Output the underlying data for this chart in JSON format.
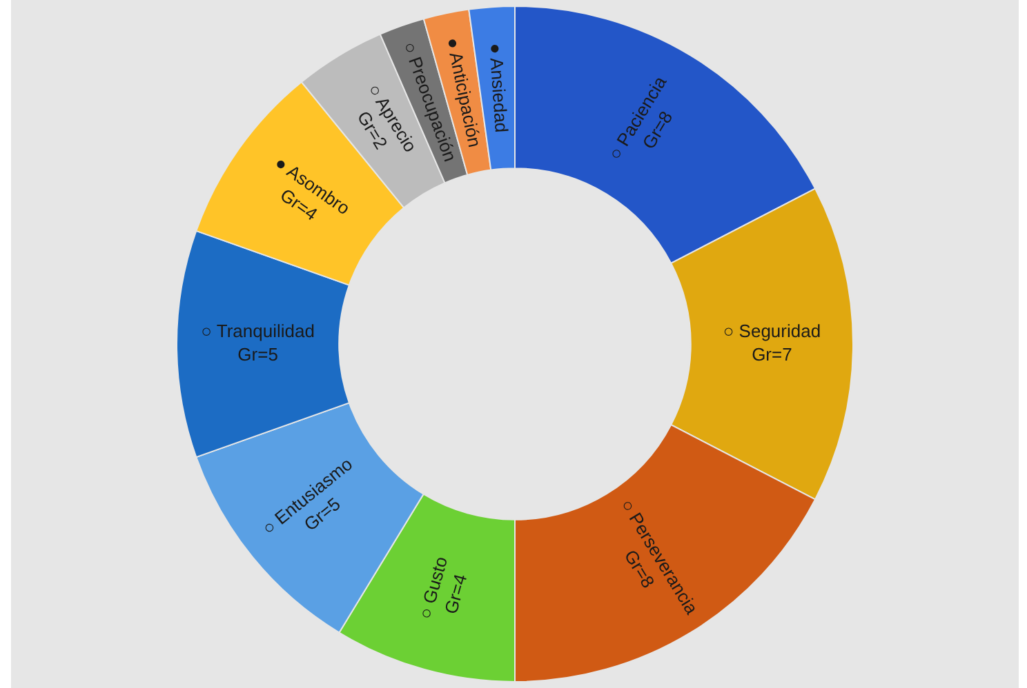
{
  "chart_data": {
    "type": "donut",
    "categories": [
      "○ Paciencia",
      "○ Seguridad",
      "○ Perseverancia",
      "○ Gusto",
      "○ Entusiasmo",
      "○ Tranquilidad",
      "● Asombro",
      "○ Aprecio",
      "○ Preocupación",
      "● Anticipación",
      "● Ansiedad"
    ],
    "values": [
      8,
      7,
      8,
      4,
      5,
      5,
      4,
      2,
      1,
      1,
      1
    ],
    "colors": [
      "#2356c8",
      "#e0a810",
      "#d05a14",
      "#6cd034",
      "#5aa0e4",
      "#1c6cc4",
      "#ffc428",
      "#bcbcbc",
      "#747474",
      "#f08c44",
      "#3c7ce4"
    ],
    "value_labels": [
      "Gr=8",
      "Gr=7",
      "Gr=8",
      "Gr=4",
      "Gr=5",
      "Gr=5",
      "Gr=4",
      "Gr=2",
      null,
      null,
      null
    ]
  }
}
